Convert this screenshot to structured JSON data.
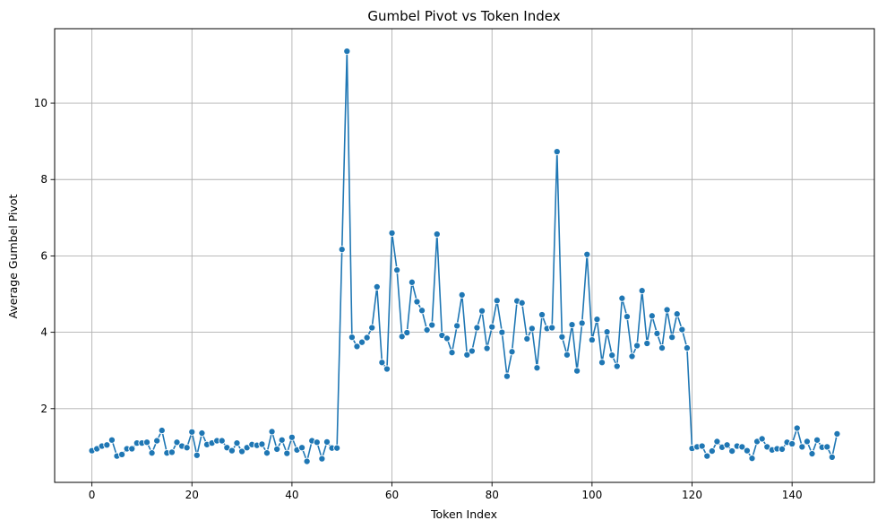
{
  "chart_data": {
    "type": "line",
    "title": "Gumbel Pivot vs Token Index",
    "xlabel": "Token Index",
    "ylabel": "Average Gumbel Pivot",
    "xlim": [
      -7.45,
      156.45
    ],
    "ylim": [
      0.07,
      11.95
    ],
    "xticks": [
      0,
      20,
      40,
      60,
      80,
      100,
      120,
      140
    ],
    "yticks": [
      2,
      4,
      6,
      8,
      10
    ],
    "grid": true,
    "legend": "none",
    "marker": "circle",
    "colors": {
      "series": "#1f77b4",
      "grid": "#b0b0b0",
      "axes": "#000000"
    },
    "series": [
      {
        "values": [
          0.9,
          0.95,
          1.02,
          1.05,
          1.18,
          0.76,
          0.8,
          0.95,
          0.95,
          1.1,
          1.1,
          1.12,
          0.84,
          1.16,
          1.43,
          0.84,
          0.86,
          1.12,
          1.02,
          0.98,
          1.39,
          0.78,
          1.36,
          1.06,
          1.1,
          1.16,
          1.16,
          0.98,
          0.9,
          1.1,
          0.88,
          0.98,
          1.06,
          1.04,
          1.07,
          0.84,
          1.4,
          0.94,
          1.18,
          0.83,
          1.25,
          0.92,
          0.98,
          0.62,
          1.16,
          1.12,
          0.69,
          1.13,
          0.97,
          0.97,
          6.17,
          11.36,
          3.87,
          3.63,
          3.74,
          3.86,
          4.12,
          5.19,
          3.21,
          3.04,
          6.6,
          5.63,
          3.89,
          3.99,
          5.31,
          4.8,
          4.57,
          4.06,
          4.19,
          6.57,
          3.92,
          3.84,
          3.47,
          4.17,
          4.98,
          3.41,
          3.51,
          4.12,
          4.56,
          3.58,
          4.14,
          4.83,
          4.0,
          2.85,
          3.49,
          4.82,
          4.77,
          3.83,
          4.1,
          3.07,
          4.46,
          4.1,
          4.12,
          8.73,
          3.88,
          3.41,
          4.2,
          2.99,
          4.24,
          6.04,
          3.8,
          4.34,
          3.21,
          4.01,
          3.4,
          3.11,
          4.89,
          4.41,
          3.37,
          3.65,
          5.09,
          3.71,
          4.43,
          3.97,
          3.59,
          4.59,
          3.87,
          4.48,
          4.07,
          3.59,
          0.96,
          1.0,
          1.02,
          0.76,
          0.89,
          1.14,
          0.99,
          1.05,
          0.89,
          1.02,
          1.0,
          0.9,
          0.7,
          1.14,
          1.21,
          1.0,
          0.92,
          0.95,
          0.94,
          1.12,
          1.08,
          1.49,
          1.0,
          1.14,
          0.82,
          1.18,
          0.99,
          1.0,
          0.73,
          1.34
        ]
      }
    ]
  }
}
